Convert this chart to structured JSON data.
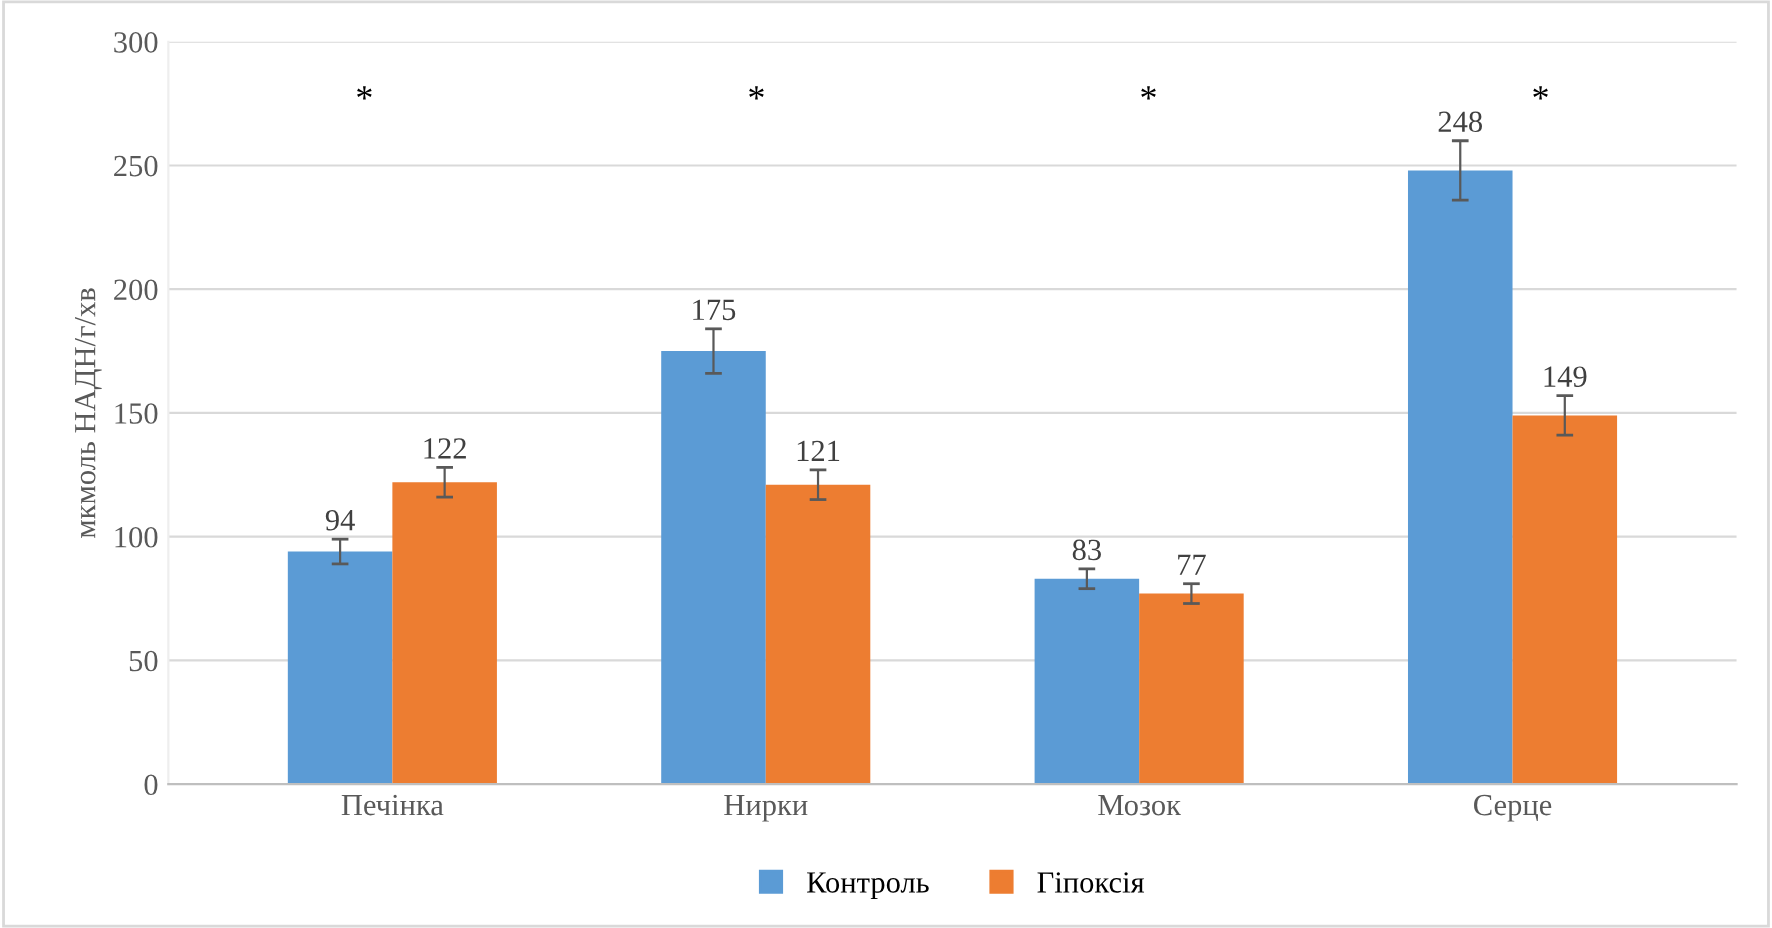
{
  "chart_data": {
    "type": "bar",
    "ylabel": "мкмоль НАДН/г/хв",
    "categories": [
      "Печінка",
      "Нирки",
      "Мозок",
      "Серце"
    ],
    "series": [
      {
        "name": "Контроль",
        "color": "#5b9bd5",
        "values": [
          94,
          175,
          83,
          248
        ],
        "errors": [
          5,
          9,
          4,
          12
        ]
      },
      {
        "name": "Гіпоксія",
        "color": "#ed7d31",
        "values": [
          122,
          121,
          77,
          149
        ],
        "errors": [
          6,
          6,
          4,
          8
        ]
      }
    ],
    "ylim": [
      0,
      300
    ],
    "yticks": [
      0,
      50,
      100,
      150,
      200,
      250,
      300
    ],
    "grid": "y",
    "legend": "bottom",
    "data_labels": true,
    "annotations": [
      "*",
      "*",
      "*",
      "*"
    ]
  }
}
